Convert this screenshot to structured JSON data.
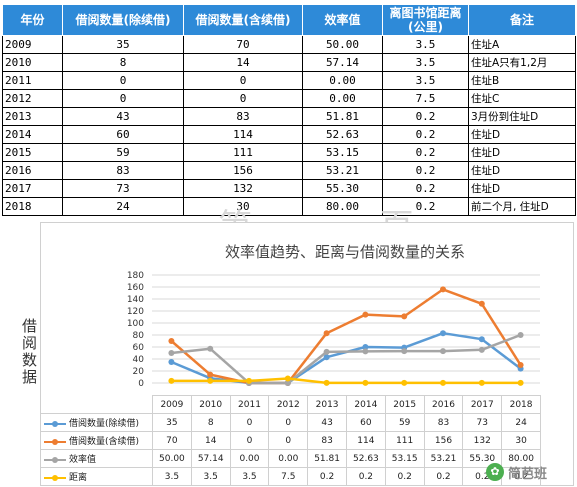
{
  "table": {
    "headers": [
      "年份",
      "借阅数量(除续借)",
      "借阅数量(含续借)",
      "效率值",
      "离图书馆距离\n(公里)",
      "备注"
    ],
    "rows": [
      [
        "2009",
        "35",
        "70",
        "50.00",
        "3.5",
        "住址A"
      ],
      [
        "2010",
        "8",
        "14",
        "57.14",
        "3.5",
        "住址A只有1,2月"
      ],
      [
        "2011",
        "0",
        "0",
        "0.00",
        "3.5",
        "住址B"
      ],
      [
        "2012",
        "0",
        "0",
        "0.00",
        "7.5",
        "住址C"
      ],
      [
        "2013",
        "43",
        "83",
        "51.81",
        "0.2",
        "3月份到住址D"
      ],
      [
        "2014",
        "60",
        "114",
        "52.63",
        "0.2",
        "住址D"
      ],
      [
        "2015",
        "59",
        "111",
        "53.15",
        "0.2",
        "住址D"
      ],
      [
        "2016",
        "83",
        "156",
        "53.21",
        "0.2",
        "住址D"
      ],
      [
        "2017",
        "73",
        "132",
        "55.30",
        "0.2",
        "住址D"
      ],
      [
        "2018",
        "24",
        "30",
        "80.00",
        "0.2",
        "前二个月, 住址D"
      ]
    ]
  },
  "watermark": "第 一 页",
  "chart_data": {
    "type": "line",
    "title": "效率值趋势、距离与借阅数量的关系",
    "ylabel": "借阅数据",
    "xlabel": "",
    "categories": [
      "2009",
      "2010",
      "2011",
      "2012",
      "2013",
      "2014",
      "2015",
      "2016",
      "2017",
      "2018"
    ],
    "ylim": [
      0,
      180
    ],
    "yticks": [
      0,
      20,
      40,
      60,
      80,
      100,
      120,
      140,
      160,
      180
    ],
    "grid": true,
    "legend": "data-table-below",
    "series": [
      {
        "name": "借阅数量(除续借)",
        "color": "#5b9bd5",
        "values": [
          35,
          8,
          0,
          0,
          43,
          60,
          59,
          83,
          73,
          24
        ],
        "labels": [
          "35",
          "8",
          "0",
          "0",
          "43",
          "60",
          "59",
          "83",
          "73",
          "24"
        ]
      },
      {
        "name": "借阅数量(含续借)",
        "color": "#ed7d31",
        "values": [
          70,
          14,
          0,
          0,
          83,
          114,
          111,
          156,
          132,
          30
        ],
        "labels": [
          "70",
          "14",
          "0",
          "0",
          "83",
          "114",
          "111",
          "156",
          "132",
          "30"
        ]
      },
      {
        "name": "效率值",
        "color": "#a5a5a5",
        "values": [
          50.0,
          57.14,
          0.0,
          0.0,
          51.81,
          52.63,
          53.15,
          53.21,
          55.3,
          80.0
        ],
        "labels": [
          "50.00",
          "57.14",
          "0.00",
          "0.00",
          "51.81",
          "52.63",
          "53.15",
          "53.21",
          "55.30",
          "80.00"
        ]
      },
      {
        "name": "距离",
        "color": "#ffc000",
        "values": [
          3.5,
          3.5,
          3.5,
          7.5,
          0.2,
          0.2,
          0.2,
          0.2,
          0.2,
          0.2
        ],
        "labels": [
          "3.5",
          "3.5",
          "3.5",
          "7.5",
          "0.2",
          "0.2",
          "0.2",
          "0.2",
          "0.2",
          "0.2"
        ]
      }
    ]
  },
  "logo": {
    "text": "简芭班",
    "icon": "wechat-icon"
  }
}
